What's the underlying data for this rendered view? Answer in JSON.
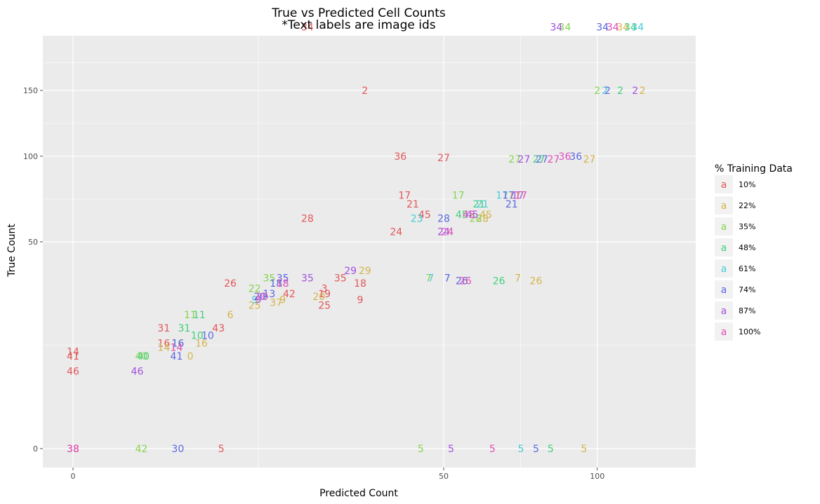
{
  "colors": {
    "panel_bg": "#ebebeb",
    "grid": "#ffffff",
    "series": [
      "#e15759",
      "#d4b44a",
      "#86d44f",
      "#3fd07a",
      "#47cbd5",
      "#5a67e0",
      "#a14fdb",
      "#dd4fb8"
    ]
  },
  "chart_data": {
    "type": "scatter",
    "marker": "text",
    "title": "True vs Predicted Cell Counts",
    "subtitle": "*Text labels are image ids",
    "xlabel": "Predicted Count",
    "ylabel": "True Count",
    "x_scale": "sqrt",
    "y_scale": "sqrt",
    "xlim": [
      0,
      120
    ],
    "ylim": [
      0,
      200
    ],
    "xticks": [
      0,
      50,
      100
    ],
    "yticks": [
      0,
      50,
      100,
      150
    ],
    "grid": true,
    "legend": {
      "title": "% Training Data",
      "key_glyph": "a",
      "position": "right",
      "entries": [
        "10%",
        "22%",
        "35%",
        "48%",
        "61%",
        "74%",
        "87%",
        "100%"
      ]
    },
    "series": [
      {
        "name": "10%",
        "points": [
          {
            "id": "34",
            "x": 20,
            "y": 208
          },
          {
            "id": "2",
            "x": 31,
            "y": 150
          },
          {
            "id": "36",
            "x": 39,
            "y": 100
          },
          {
            "id": "27",
            "x": 50,
            "y": 99
          },
          {
            "id": "17",
            "x": 40,
            "y": 75
          },
          {
            "id": "21",
            "x": 42,
            "y": 70
          },
          {
            "id": "45",
            "x": 45,
            "y": 64
          },
          {
            "id": "28",
            "x": 20,
            "y": 62
          },
          {
            "id": "24",
            "x": 38,
            "y": 55
          },
          {
            "id": "26",
            "x": 9,
            "y": 32
          },
          {
            "id": "3",
            "x": 23,
            "y": 30
          },
          {
            "id": "18",
            "x": 30,
            "y": 32
          },
          {
            "id": "35",
            "x": 26,
            "y": 34
          },
          {
            "id": "42",
            "x": 17,
            "y": 28
          },
          {
            "id": "19",
            "x": 23,
            "y": 28
          },
          {
            "id": "9",
            "x": 30,
            "y": 26
          },
          {
            "id": "25",
            "x": 23,
            "y": 24
          },
          {
            "id": "31",
            "x": 3,
            "y": 17
          },
          {
            "id": "43",
            "x": 7.7,
            "y": 17
          },
          {
            "id": "16",
            "x": 3,
            "y": 13
          },
          {
            "id": "14",
            "x": 0,
            "y": 11
          },
          {
            "id": "41",
            "x": 0,
            "y": 10
          },
          {
            "id": "46",
            "x": 0,
            "y": 7
          },
          {
            "id": "38",
            "x": 0,
            "y": 0
          },
          {
            "id": "5",
            "x": 8,
            "y": 0
          }
        ]
      },
      {
        "name": "22%",
        "points": [
          {
            "id": "34",
            "x": 110,
            "y": 208
          },
          {
            "id": "2",
            "x": 118,
            "y": 150
          },
          {
            "id": "27",
            "x": 97,
            "y": 98
          },
          {
            "id": "17",
            "x": 71,
            "y": 75
          },
          {
            "id": "45",
            "x": 62,
            "y": 64
          },
          {
            "id": "28",
            "x": 61,
            "y": 62
          },
          {
            "id": "7",
            "x": 72,
            "y": 34
          },
          {
            "id": "26",
            "x": 78,
            "y": 33
          },
          {
            "id": "29",
            "x": 31,
            "y": 37
          },
          {
            "id": "20",
            "x": 22,
            "y": 27
          },
          {
            "id": "37",
            "x": 15,
            "y": 25
          },
          {
            "id": "9",
            "x": 16,
            "y": 26
          },
          {
            "id": "25",
            "x": 12,
            "y": 24
          },
          {
            "id": "6",
            "x": 9,
            "y": 21
          },
          {
            "id": "16",
            "x": 6,
            "y": 13
          },
          {
            "id": "14",
            "x": 3,
            "y": 12
          },
          {
            "id": "0",
            "x": 5,
            "y": 10
          },
          {
            "id": "5",
            "x": 95,
            "y": 0
          }
        ]
      },
      {
        "name": "35%",
        "points": [
          {
            "id": "34",
            "x": 88,
            "y": 208
          },
          {
            "id": "2",
            "x": 100,
            "y": 150
          },
          {
            "id": "27",
            "x": 71,
            "y": 98
          },
          {
            "id": "17",
            "x": 54,
            "y": 75
          },
          {
            "id": "28",
            "x": 59,
            "y": 62
          },
          {
            "id": "7",
            "x": 46,
            "y": 34
          },
          {
            "id": "35",
            "x": 14,
            "y": 34
          },
          {
            "id": "22",
            "x": 12,
            "y": 30
          },
          {
            "id": "16",
            "x": 4,
            "y": 13
          },
          {
            "id": "5",
            "x": 44,
            "y": 0
          },
          {
            "id": "40",
            "x": 1.7,
            "y": 10
          },
          {
            "id": "42",
            "x": 1.7,
            "y": 0
          },
          {
            "id": "11",
            "x": 5,
            "y": 21
          }
        ]
      },
      {
        "name": "48%",
        "points": [
          {
            "id": "34",
            "x": 113,
            "y": 208
          },
          {
            "id": "2",
            "x": 109,
            "y": 150
          },
          {
            "id": "27",
            "x": 79,
            "y": 98
          },
          {
            "id": "21",
            "x": 60,
            "y": 70
          },
          {
            "id": "45",
            "x": 55,
            "y": 64
          },
          {
            "id": "26",
            "x": 66,
            "y": 33
          },
          {
            "id": "31",
            "x": 4.5,
            "y": 17
          },
          {
            "id": "10",
            "x": 5.6,
            "y": 15
          },
          {
            "id": "11",
            "x": 5.8,
            "y": 21
          },
          {
            "id": "5",
            "x": 83,
            "y": 0
          },
          {
            "id": "40",
            "x": 1.8,
            "y": 10
          }
        ]
      },
      {
        "name": "61%",
        "points": [
          {
            "id": "34",
            "x": 116,
            "y": 208
          },
          {
            "id": "2",
            "x": 103,
            "y": 150
          },
          {
            "id": "17",
            "x": 67,
            "y": 75
          },
          {
            "id": "21",
            "x": 61,
            "y": 70
          },
          {
            "id": "23",
            "x": 43,
            "y": 62
          },
          {
            "id": "7",
            "x": 46.6,
            "y": 34
          },
          {
            "id": "5",
            "x": 73,
            "y": 0
          },
          {
            "id": "9",
            "x": 12,
            "y": 26
          }
        ]
      },
      {
        "name": "74%",
        "points": [
          {
            "id": "34",
            "x": 102,
            "y": 208
          },
          {
            "id": "2",
            "x": 104,
            "y": 150
          },
          {
            "id": "36",
            "x": 92,
            "y": 100
          },
          {
            "id": "27",
            "x": 80,
            "y": 98
          },
          {
            "id": "17",
            "x": 69,
            "y": 75
          },
          {
            "id": "21",
            "x": 70,
            "y": 70
          },
          {
            "id": "28",
            "x": 50,
            "y": 62
          },
          {
            "id": "7",
            "x": 51,
            "y": 34
          },
          {
            "id": "26",
            "x": 55,
            "y": 33
          },
          {
            "id": "35",
            "x": 16,
            "y": 34
          },
          {
            "id": "18",
            "x": 15,
            "y": 32
          },
          {
            "id": "13",
            "x": 14,
            "y": 28
          },
          {
            "id": "20",
            "x": 12.7,
            "y": 27
          },
          {
            "id": "16",
            "x": 4,
            "y": 13
          },
          {
            "id": "10",
            "x": 6.6,
            "y": 15
          },
          {
            "id": "41",
            "x": 3.9,
            "y": 10
          },
          {
            "id": "30",
            "x": 4,
            "y": 0
          },
          {
            "id": "5",
            "x": 78,
            "y": 0
          }
        ]
      },
      {
        "name": "87%",
        "points": [
          {
            "id": "34",
            "x": 85,
            "y": 208
          },
          {
            "id": "2",
            "x": 115,
            "y": 150
          },
          {
            "id": "27",
            "x": 74,
            "y": 98
          },
          {
            "id": "17",
            "x": 72,
            "y": 75
          },
          {
            "id": "45",
            "x": 58,
            "y": 64
          },
          {
            "id": "24",
            "x": 50,
            "y": 55
          },
          {
            "id": "29",
            "x": 28,
            "y": 37
          },
          {
            "id": "35",
            "x": 20,
            "y": 34
          },
          {
            "id": "9",
            "x": 12.5,
            "y": 26
          },
          {
            "id": "5",
            "x": 52,
            "y": 0
          },
          {
            "id": "46",
            "x": 1.5,
            "y": 7
          }
        ]
      },
      {
        "name": "100%",
        "points": [
          {
            "id": "34",
            "x": 106,
            "y": 208
          },
          {
            "id": "36",
            "x": 88,
            "y": 100
          },
          {
            "id": "27",
            "x": 84,
            "y": 98
          },
          {
            "id": "17",
            "x": 73,
            "y": 75
          },
          {
            "id": "45",
            "x": 57,
            "y": 64
          },
          {
            "id": "24",
            "x": 51,
            "y": 55
          },
          {
            "id": "26",
            "x": 56,
            "y": 33
          },
          {
            "id": "18",
            "x": 16,
            "y": 32
          },
          {
            "id": "20",
            "x": 13,
            "y": 27
          },
          {
            "id": "14",
            "x": 3.9,
            "y": 12
          },
          {
            "id": "5",
            "x": 64,
            "y": 0
          },
          {
            "id": "38",
            "x": 0,
            "y": 0
          }
        ]
      }
    ]
  }
}
